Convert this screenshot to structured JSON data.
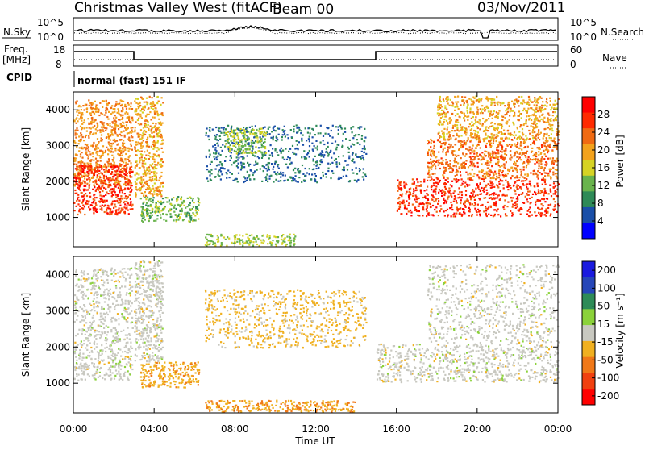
{
  "header": {
    "station": "Christmas Valley West (fitACF)",
    "beam": "Beam 00",
    "date": "03/Nov/2011"
  },
  "top_panels": {
    "nsky_label": "N.Sky",
    "nsky_ticks": [
      "10^5",
      "10^0"
    ],
    "nsearch_label": "N.Search",
    "nsearch_ticks": [
      "10^5",
      "10^0"
    ],
    "freq_label_1": "Freq.",
    "freq_label_2": "[MHz]",
    "freq_ticks": [
      "18",
      "8"
    ],
    "nave_label": "Nave",
    "nave_ticks": [
      "60",
      "0"
    ],
    "cpid_label": "CPID",
    "cpid_text": "normal (fast) 151 IF"
  },
  "colors": {
    "power_scale": [
      "#0000ff",
      "#1a4fa8",
      "#2e8a57",
      "#69b34c",
      "#d6d324",
      "#f3a21c",
      "#f06a12",
      "#ff2a00",
      "#ff0000"
    ],
    "velocity_scale": [
      "#1a1adf",
      "#2646b8",
      "#2e8b57",
      "#8bd23a",
      "#c8c8c0",
      "#f0b020",
      "#f07818",
      "#f04010",
      "#ff0000"
    ]
  },
  "chart_data": [
    {
      "type": "heatmap",
      "title": "",
      "ylabel": "Slant Range [km]",
      "xlabel": "Time UT",
      "ylim": [
        180,
        4500
      ],
      "xlim": [
        "00:00",
        "00:00"
      ],
      "yticks": [
        "1000",
        "2000",
        "3000",
        "4000"
      ],
      "xticks": [
        "00:00",
        "04:00",
        "08:00",
        "12:00",
        "16:00",
        "20:00",
        "00:00"
      ],
      "colorbar": {
        "label": "Power [dB]",
        "ticks": [
          "4",
          "8",
          "12",
          "16",
          "20",
          "24",
          "28"
        ]
      },
      "echo_regions": [
        {
          "t_start": 0.0,
          "t_end": 2.9,
          "r_start": 1900,
          "r_end": 4300,
          "value": 22
        },
        {
          "t_start": 0.0,
          "t_end": 2.9,
          "r_start": 1100,
          "r_end": 2500,
          "value": 28
        },
        {
          "t_start": 3.0,
          "t_end": 4.4,
          "r_start": 1600,
          "r_end": 4400,
          "value": 20
        },
        {
          "t_start": 3.3,
          "t_end": 6.2,
          "r_start": 900,
          "r_end": 1600,
          "value": 12
        },
        {
          "t_start": 6.5,
          "t_end": 14.5,
          "r_start": 2000,
          "r_end": 3600,
          "value": 6
        },
        {
          "t_start": 7.5,
          "t_end": 9.5,
          "r_start": 2800,
          "r_end": 3500,
          "value": 14
        },
        {
          "t_start": 6.5,
          "t_end": 11.0,
          "r_start": 230,
          "r_end": 550,
          "value": 14
        },
        {
          "t_start": 16.0,
          "t_end": 24.0,
          "r_start": 1050,
          "r_end": 2100,
          "value": 28
        },
        {
          "t_start": 17.5,
          "t_end": 24.0,
          "r_start": 2100,
          "r_end": 3200,
          "value": 24
        },
        {
          "t_start": 18.0,
          "t_end": 24.0,
          "r_start": 3200,
          "r_end": 4400,
          "value": 20
        }
      ]
    },
    {
      "type": "heatmap",
      "title": "",
      "ylabel": "Slant Range [km]",
      "xlabel": "Time UT",
      "ylim": [
        180,
        4500
      ],
      "xlim": [
        "00:00",
        "00:00"
      ],
      "yticks": [
        "1000",
        "2000",
        "3000",
        "4000"
      ],
      "xticks": [
        "00:00",
        "04:00",
        "08:00",
        "12:00",
        "16:00",
        "20:00",
        "00:00"
      ],
      "colorbar": {
        "label": "Velocity [m s⁻¹]",
        "ticks": [
          "200",
          "100",
          "50",
          "15",
          "-15",
          "-50",
          "-100",
          "-200"
        ]
      },
      "echo_regions": [
        {
          "t_start": 0.0,
          "t_end": 2.9,
          "r_start": 1100,
          "r_end": 4200,
          "value": 0
        },
        {
          "t_start": 3.0,
          "t_end": 4.4,
          "r_start": 1600,
          "r_end": 4400,
          "value": 0
        },
        {
          "t_start": 3.3,
          "t_end": 6.2,
          "r_start": 900,
          "r_end": 1600,
          "value": -60
        },
        {
          "t_start": 6.5,
          "t_end": 14.5,
          "r_start": 2000,
          "r_end": 3600,
          "value": -40
        },
        {
          "t_start": 6.5,
          "t_end": 14.0,
          "r_start": 230,
          "r_end": 550,
          "value": -70
        },
        {
          "t_start": 15.0,
          "t_end": 24.0,
          "r_start": 1050,
          "r_end": 2100,
          "value": 0
        },
        {
          "t_start": 17.5,
          "t_end": 24.0,
          "r_start": 2100,
          "r_end": 4300,
          "value": 0
        }
      ]
    }
  ]
}
